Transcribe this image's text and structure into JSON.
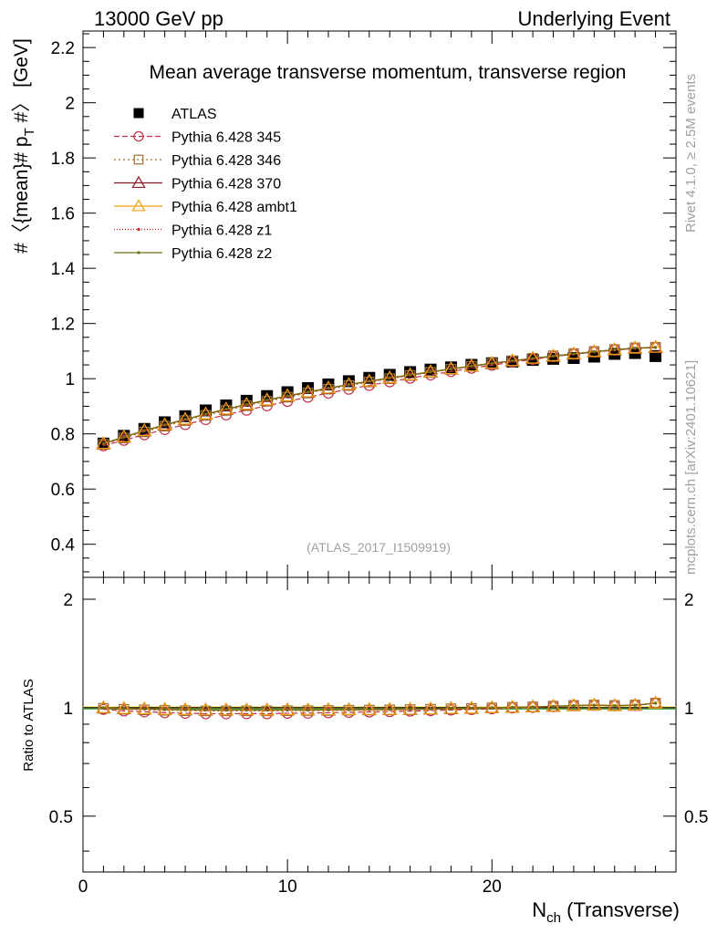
{
  "header": {
    "left": "13000 GeV pp",
    "right": "Underlying Event"
  },
  "side_labels": {
    "rivet": "Rivet 4.1.0, ≥ 2.5M events",
    "mcplots": "mcplots.cern.ch [arXiv:2401.10621]"
  },
  "chart_data": {
    "type": "line",
    "title": "Mean average transverse momentum, transverse region",
    "watermark": "(ATLAS_2017_I1509919)",
    "ylabel": "#〈{mean}# p_T #〉 [GeV]",
    "ylabel_parts": {
      "pre": "#〈{mean}# p",
      "sub": "T",
      "post": " #〉 [GeV]"
    },
    "xlabel": "N_ch (Transverse)",
    "xlabel_parts": {
      "main": "N",
      "sub": "ch",
      "post": " (Transverse)"
    },
    "ratio_ylabel": "Ratio to ATLAS",
    "xlim": [
      0,
      29
    ],
    "ylim": [
      0.28,
      2.26
    ],
    "ratio_ylim": [
      0.35,
      2.3
    ],
    "x_ticks": [
      0,
      10,
      20
    ],
    "y_ticks": [
      0.4,
      0.6,
      0.8,
      1,
      1.2,
      1.4,
      1.6,
      1.8,
      2,
      2.2
    ],
    "y_tick_labels": [
      "0.4",
      "0.6",
      "0.8",
      "1",
      "1.2",
      "1.4",
      "1.6",
      "1.8",
      "2",
      "2.2"
    ],
    "ratio_ticks": [
      0.5,
      1,
      2
    ],
    "ratio_tick_labels": [
      "0.5",
      "1",
      "2"
    ],
    "x": [
      1,
      2,
      3,
      4,
      5,
      6,
      7,
      8,
      9,
      10,
      11,
      12,
      13,
      14,
      15,
      16,
      17,
      18,
      19,
      20,
      21,
      22,
      23,
      24,
      25,
      26,
      27,
      28
    ],
    "series": [
      {
        "name": "ATLAS",
        "color": "#000000",
        "marker": "square-filled",
        "dash": "none",
        "values": [
          0.765,
          0.793,
          0.818,
          0.842,
          0.864,
          0.885,
          0.903,
          0.92,
          0.937,
          0.951,
          0.966,
          0.979,
          0.991,
          1.003,
          1.014,
          1.024,
          1.033,
          1.041,
          1.05,
          1.056,
          1.062,
          1.068,
          1.072,
          1.075,
          1.08,
          1.09,
          1.093,
          1.082
        ]
      },
      {
        "name": "Pythia 6.428 345",
        "color": "#c0304a",
        "marker": "circle-open",
        "dash": "6,3",
        "values": [
          0.757,
          0.777,
          0.797,
          0.816,
          0.834,
          0.852,
          0.869,
          0.886,
          0.902,
          0.918,
          0.933,
          0.948,
          0.962,
          0.976,
          0.989,
          1.002,
          1.014,
          1.026,
          1.038,
          1.049,
          1.06,
          1.07,
          1.08,
          1.089,
          1.097,
          1.104,
          1.11,
          1.113
        ]
      },
      {
        "name": "Pythia 6.428 346",
        "color": "#a07030",
        "marker": "square-open",
        "dash": "2,3",
        "values": [
          0.762,
          0.785,
          0.807,
          0.828,
          0.848,
          0.867,
          0.885,
          0.902,
          0.918,
          0.933,
          0.948,
          0.962,
          0.975,
          0.988,
          1.0,
          1.012,
          1.023,
          1.034,
          1.045,
          1.055,
          1.065,
          1.074,
          1.083,
          1.091,
          1.099,
          1.106,
          1.112,
          1.114
        ]
      },
      {
        "name": "Pythia 6.428 370",
        "color": "#8b1a2a",
        "marker": "triangle-open",
        "dash": "none",
        "values": [
          0.764,
          0.788,
          0.811,
          0.832,
          0.852,
          0.871,
          0.889,
          0.906,
          0.922,
          0.937,
          0.951,
          0.965,
          0.978,
          0.99,
          1.002,
          1.013,
          1.024,
          1.035,
          1.045,
          1.055,
          1.064,
          1.073,
          1.081,
          1.089,
          1.097,
          1.104,
          1.11,
          1.113
        ]
      },
      {
        "name": "Pythia 6.428 ambt1",
        "color": "#f0a010",
        "marker": "triangle-open",
        "dash": "none",
        "values": [
          0.765,
          0.789,
          0.812,
          0.833,
          0.853,
          0.872,
          0.89,
          0.907,
          0.923,
          0.938,
          0.952,
          0.966,
          0.979,
          0.991,
          1.003,
          1.014,
          1.025,
          1.036,
          1.046,
          1.056,
          1.065,
          1.074,
          1.082,
          1.09,
          1.098,
          1.105,
          1.111,
          1.114
        ]
      },
      {
        "name": "Pythia 6.428 z1",
        "color": "#d02020",
        "marker": "dot",
        "dash": "1,2",
        "values": [
          0.764,
          0.788,
          0.811,
          0.832,
          0.852,
          0.871,
          0.889,
          0.906,
          0.922,
          0.937,
          0.951,
          0.965,
          0.978,
          0.99,
          1.002,
          1.013,
          1.024,
          1.035,
          1.045,
          1.055,
          1.064,
          1.073,
          1.081,
          1.089,
          1.097,
          1.104,
          1.11,
          1.113
        ]
      },
      {
        "name": "Pythia 6.428 z2",
        "color": "#707010",
        "marker": "dot",
        "dash": "none",
        "values": [
          0.765,
          0.789,
          0.812,
          0.833,
          0.853,
          0.872,
          0.89,
          0.907,
          0.923,
          0.938,
          0.952,
          0.966,
          0.979,
          0.991,
          1.003,
          1.014,
          1.025,
          1.036,
          1.046,
          1.056,
          1.065,
          1.074,
          1.082,
          1.09,
          1.098,
          1.105,
          1.111,
          1.114
        ]
      }
    ]
  }
}
